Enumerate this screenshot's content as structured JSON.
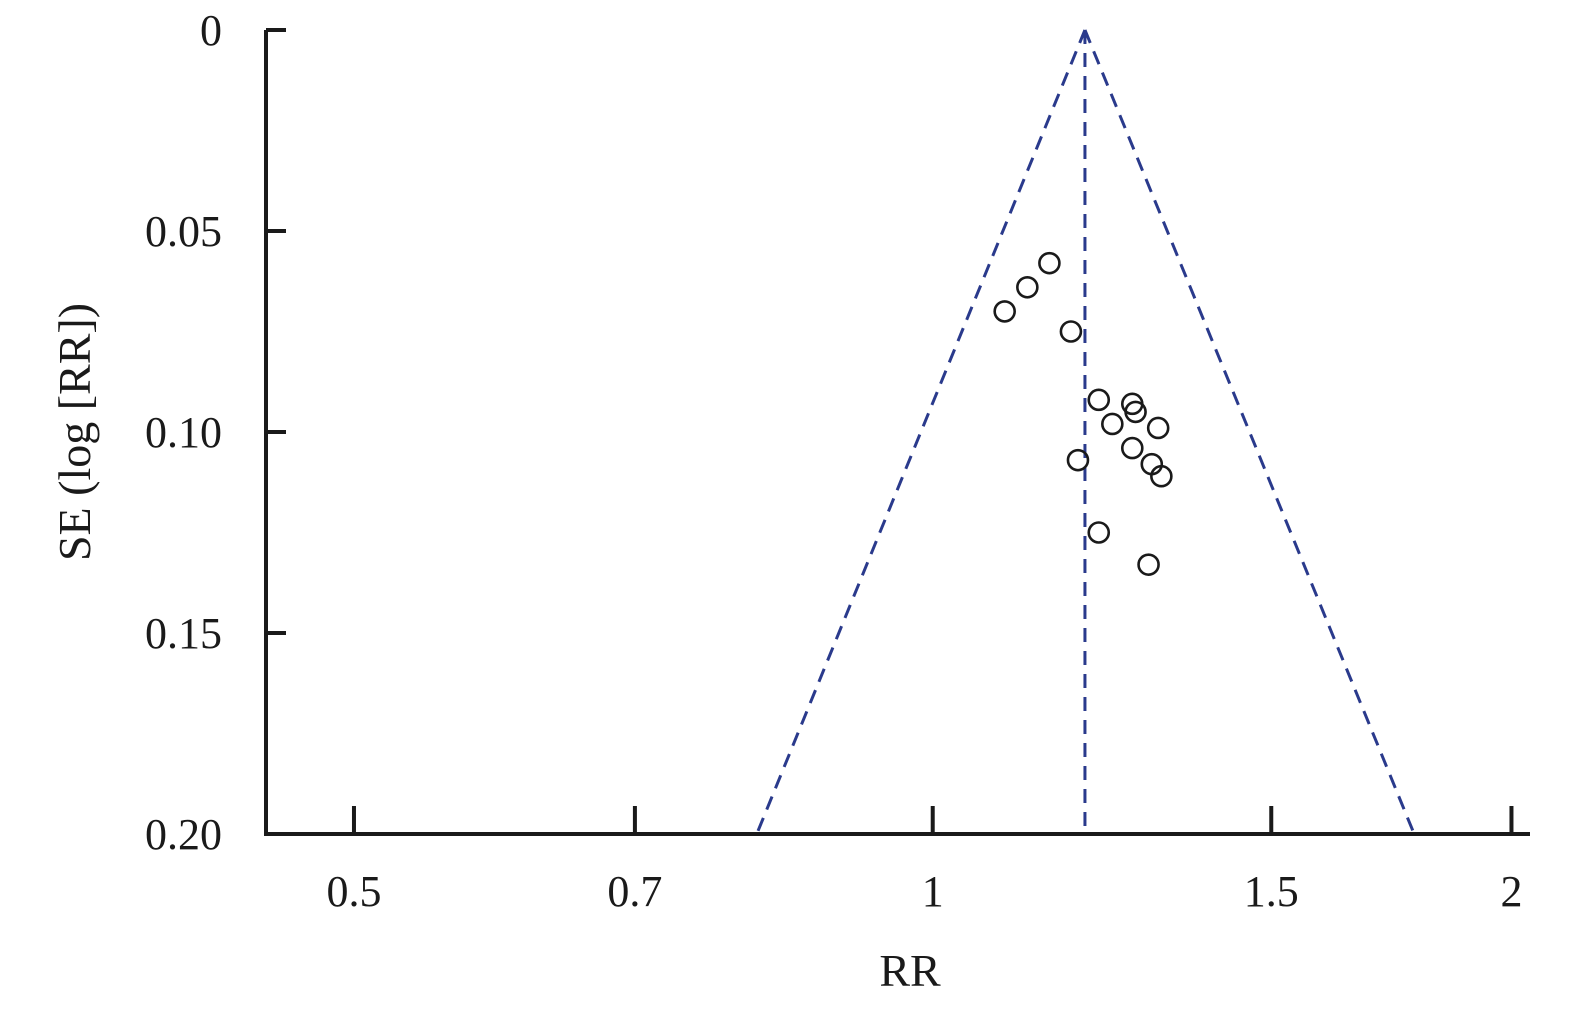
{
  "chart_data": {
    "type": "scatter",
    "title": "",
    "xlabel": "RR",
    "ylabel": "SE (log [RR])",
    "x_scale": "log",
    "xlim": [
      0.45,
      2.04
    ],
    "ylim": [
      0,
      0.2
    ],
    "y_inverted": true,
    "x_ticks": [
      {
        "value": 0.5,
        "label": "0.5"
      },
      {
        "value": 0.7,
        "label": "0.7"
      },
      {
        "value": 1,
        "label": "1"
      },
      {
        "value": 1.5,
        "label": "1.5"
      },
      {
        "value": 2,
        "label": "2"
      }
    ],
    "y_ticks": [
      {
        "value": 0,
        "label": "0"
      },
      {
        "value": 0.05,
        "label": "0.05"
      },
      {
        "value": 0.1,
        "label": "0.10"
      },
      {
        "value": 0.15,
        "label": "0.15"
      },
      {
        "value": 0.2,
        "label": "0.20"
      }
    ],
    "pooled_rr": 1.2,
    "funnel_limits_at_max_se": {
      "se": 0.2,
      "lower_rr": 0.81,
      "upper_rr": 1.78
    },
    "points": [
      {
        "x": 1.15,
        "y": 0.058
      },
      {
        "x": 1.12,
        "y": 0.064
      },
      {
        "x": 1.09,
        "y": 0.07
      },
      {
        "x": 1.18,
        "y": 0.075
      },
      {
        "x": 1.22,
        "y": 0.092
      },
      {
        "x": 1.27,
        "y": 0.093
      },
      {
        "x": 1.275,
        "y": 0.095
      },
      {
        "x": 1.24,
        "y": 0.098
      },
      {
        "x": 1.31,
        "y": 0.099
      },
      {
        "x": 1.27,
        "y": 0.104
      },
      {
        "x": 1.19,
        "y": 0.107
      },
      {
        "x": 1.3,
        "y": 0.108
      },
      {
        "x": 1.315,
        "y": 0.111
      },
      {
        "x": 1.22,
        "y": 0.125
      },
      {
        "x": 1.295,
        "y": 0.133
      }
    ]
  }
}
